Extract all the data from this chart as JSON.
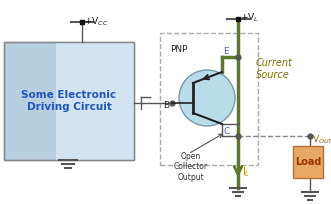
{
  "bg_color": "#ffffff",
  "box_fill_left": "#d0e4f0",
  "box_fill_right": "#e8f2f8",
  "box_text": "Some Electronic\nDriving Circuit",
  "box_text_color": "#2255bb",
  "box_border": "#888888",
  "transistor_fill": "#b8dce8",
  "transistor_border": "#7799aa",
  "dashed_box_color": "#aaaaaa",
  "green_color": "#5a7a28",
  "wire_color": "#555555",
  "vcc_text": "+V$_{CC}$",
  "vl_text": "+V$_L$",
  "vout_text": "V$_{OUT}$",
  "il_text": "I$_L$",
  "pnp_label": "PNP",
  "e_label": "E",
  "b_label": "B",
  "c_label": "C",
  "current_source_label": "Current\nSource",
  "open_collector_label": "Open\nCollector\nOutput",
  "load_label": "Load",
  "load_fill": "#e8a868",
  "load_border": "#b07030",
  "figsize": [
    3.31,
    2.04
  ],
  "dpi": 100
}
